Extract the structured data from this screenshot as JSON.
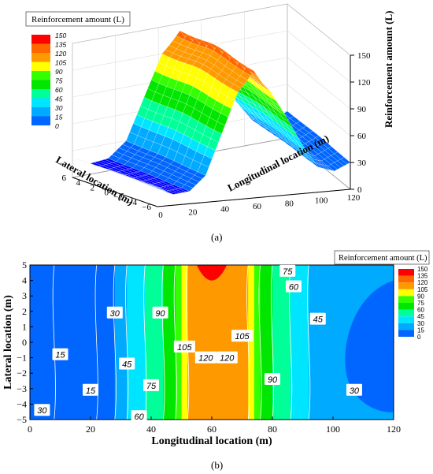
{
  "colors": {
    "levels": [
      "#1a00ff",
      "#0050ff",
      "#0080ff",
      "#00bfff",
      "#00ffff",
      "#00ff80",
      "#00e000",
      "#40ff00",
      "#ffff00",
      "#ffd000",
      "#ff9900",
      "#ff6600",
      "#ff0000"
    ],
    "legend_swatches": [
      "#0000ff",
      "#0066ff",
      "#00aaff",
      "#00e5ff",
      "#00ff99",
      "#00e600",
      "#33ff00",
      "#ffff00",
      "#ff9900",
      "#ff6600",
      "#ff0000"
    ]
  },
  "chart_data": [
    {
      "type": "surface3d",
      "caption": "(a)",
      "legend_title": "Reinforcement amount (L)",
      "legend_labels": [
        "150",
        "135",
        "120",
        "105",
        "90",
        "75",
        "60",
        "45",
        "30",
        "15",
        "0"
      ],
      "x_axis_label": "Longitudinal location (m)",
      "y_axis_label": "Lateral location (m)",
      "z_axis_label": "Reinforcement amount (L)",
      "x_ticks": [
        "0",
        "20",
        "40",
        "60",
        "80",
        "100",
        "120"
      ],
      "y_ticks": [
        "6",
        "4",
        "2",
        "0",
        "−2",
        "−4",
        "−6"
      ],
      "z_ticks": [
        "0",
        "30",
        "60",
        "90",
        "120",
        "150"
      ],
      "xlim": [
        0,
        120
      ],
      "ylim": [
        -6,
        6
      ],
      "zlim": [
        0,
        150
      ],
      "profile_x": [
        0,
        10,
        20,
        30,
        40,
        50,
        55,
        60,
        65,
        70,
        80,
        90,
        100,
        110,
        120
      ],
      "profile_z": [
        22,
        12,
        14,
        30,
        75,
        120,
        130,
        142,
        128,
        118,
        88,
        55,
        28,
        22,
        30
      ]
    },
    {
      "type": "contour",
      "caption": "(b)",
      "legend_title": "Reinforcement amount (L)",
      "legend_labels": [
        "150",
        "135",
        "120",
        "105",
        "90",
        "75",
        "60",
        "45",
        "30",
        "15",
        "0"
      ],
      "xlabel": "Longitudinal location (m)",
      "ylabel": "Lateral location (m)",
      "x_ticks": [
        "0",
        "20",
        "40",
        "60",
        "80",
        "100",
        "120"
      ],
      "y_ticks": [
        "5",
        "4",
        "3",
        "2",
        "1",
        "0",
        "−1",
        "−2",
        "−3",
        "−4",
        "−5"
      ],
      "xlim": [
        0,
        120
      ],
      "ylim": [
        -5,
        5
      ],
      "contour_labels": [
        "30",
        "15",
        "15",
        "30",
        "45",
        "75",
        "60",
        "90",
        "105",
        "120",
        "120",
        "105",
        "90",
        "75",
        "60",
        "45",
        "30"
      ]
    }
  ]
}
